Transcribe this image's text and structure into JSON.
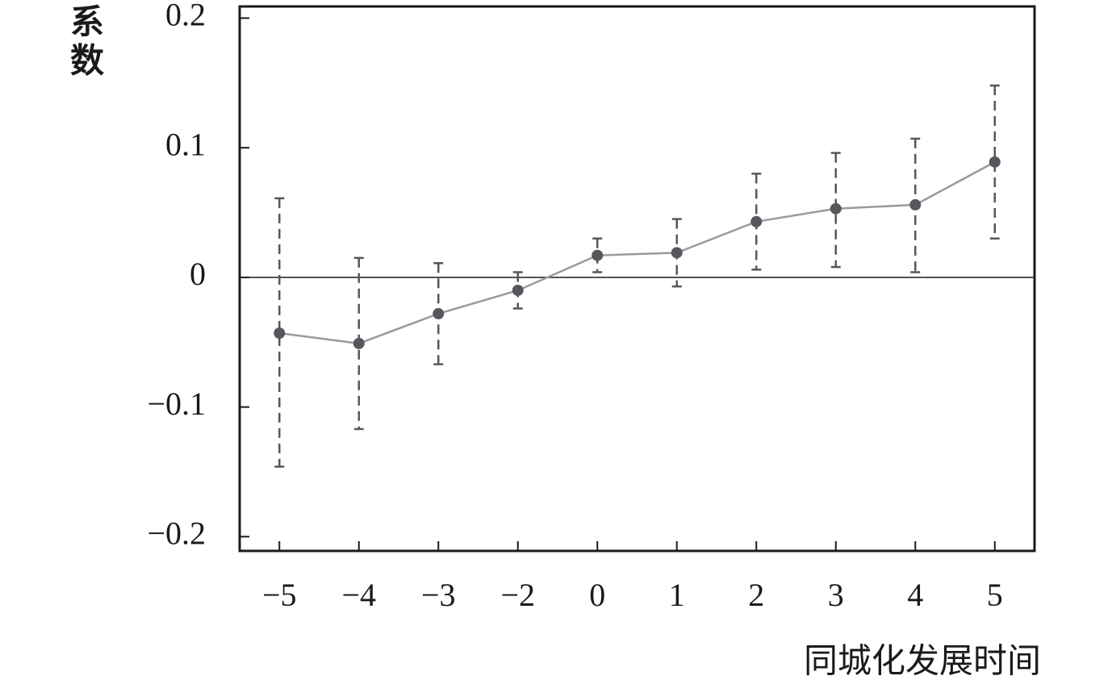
{
  "chart_data": {
    "type": "errorbar-line",
    "y_label": "系数",
    "x_label": "同城化发展时间",
    "categories": [
      "−5",
      "−4",
      "−3",
      "−2",
      "0",
      "1",
      "2",
      "3",
      "4",
      "5"
    ],
    "values": [
      -0.043,
      -0.051,
      -0.028,
      -0.01,
      0.017,
      0.019,
      0.043,
      0.053,
      0.056,
      0.089
    ],
    "upper": [
      0.061,
      0.015,
      0.011,
      0.004,
      0.03,
      0.045,
      0.08,
      0.096,
      0.107,
      0.148
    ],
    "lower": [
      -0.146,
      -0.117,
      -0.067,
      -0.024,
      0.004,
      -0.007,
      0.006,
      0.008,
      0.004,
      0.03
    ],
    "line_color": "#9a9a9a",
    "marker_color": "#55575c",
    "error_color": "#55575c",
    "ylim": [
      -0.211,
      0.209
    ],
    "yticks": [
      {
        "value": -0.2,
        "label": "−0.2"
      },
      {
        "value": -0.1,
        "label": "−0.1"
      },
      0,
      0.1,
      0.2
    ],
    "reference_line": 0,
    "grid": false
  }
}
